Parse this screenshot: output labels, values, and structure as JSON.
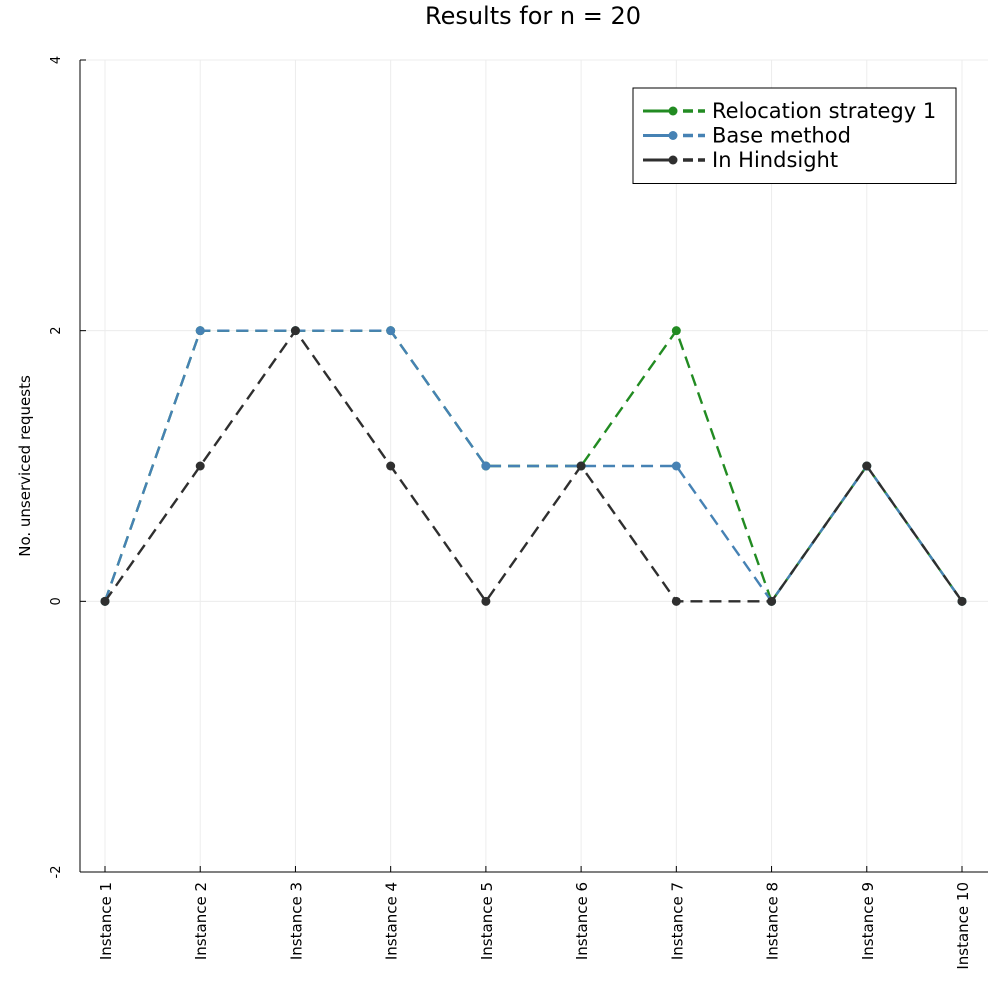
{
  "chart_data": {
    "type": "line",
    "title": "Results for n = 20",
    "xlabel": "",
    "ylabel": "No. unserviced requests",
    "categories": [
      "Instance 1",
      "Instance 2",
      "Instance 3",
      "Instance 4",
      "Instance 5",
      "Instance 6",
      "Instance 7",
      "Instance 8",
      "Instance 9",
      "Instance 10"
    ],
    "yticks": [
      -2,
      0,
      2,
      4
    ],
    "ylim": [
      -2,
      4
    ],
    "grid": true,
    "legend_position": "top-right",
    "series": [
      {
        "name": "Relocation strategy 1",
        "color": "#228b22",
        "values": [
          0,
          2,
          2,
          2,
          1,
          1,
          2,
          0,
          1,
          0
        ]
      },
      {
        "name": "Base method",
        "color": "#4682b4",
        "values": [
          0,
          2,
          2,
          2,
          1,
          1,
          1,
          0,
          1,
          0
        ]
      },
      {
        "name": "In Hindsight",
        "color": "#2f2f2f",
        "values": [
          0,
          1,
          2,
          1,
          0,
          1,
          0,
          0,
          1,
          0
        ]
      }
    ]
  }
}
